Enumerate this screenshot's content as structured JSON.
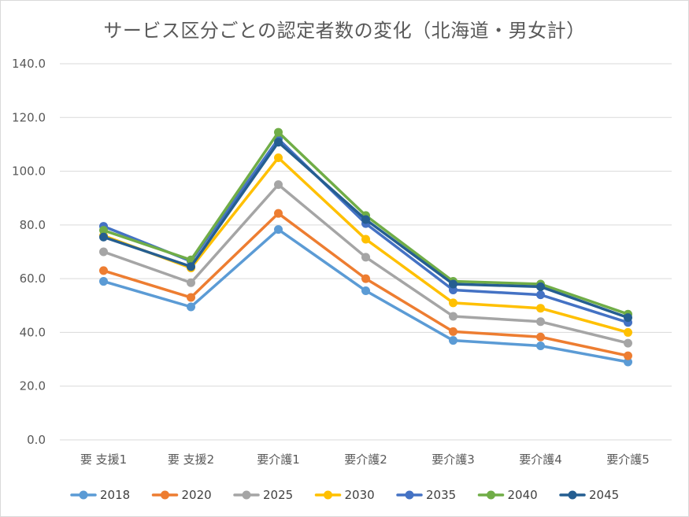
{
  "chart_data": {
    "type": "line",
    "title": "サービス区分ごとの認定者数の変化（北海道・男女計）",
    "xlabel": "",
    "ylabel": "",
    "categories": [
      "要 支援1",
      "要 支援2",
      "要介護1",
      "要介護2",
      "要介護3",
      "要介護4",
      "要介護5"
    ],
    "ylim": [
      0,
      140
    ],
    "yticks": [
      "0.0",
      "20.0",
      "40.0",
      "60.0",
      "80.0",
      "100.0",
      "120.0",
      "140.0"
    ],
    "grid": true,
    "legend_position": "bottom",
    "series": [
      {
        "name": "2018",
        "color": "#5b9bd5",
        "values": [
          59.0,
          49.5,
          78.3,
          55.5,
          37.0,
          35.0,
          29.0
        ]
      },
      {
        "name": "2020",
        "color": "#ed7d31",
        "values": [
          63.0,
          53.0,
          84.3,
          60.0,
          40.3,
          38.3,
          31.3
        ]
      },
      {
        "name": "2025",
        "color": "#a5a5a5",
        "values": [
          70.0,
          58.5,
          95.0,
          68.0,
          46.0,
          44.0,
          36.0
        ]
      },
      {
        "name": "2030",
        "color": "#ffc000",
        "values": [
          76.0,
          64.0,
          105.0,
          74.7,
          51.0,
          49.0,
          40.0
        ]
      },
      {
        "name": "2035",
        "color": "#4472c4",
        "values": [
          79.5,
          66.5,
          112.0,
          80.5,
          55.8,
          54.0,
          43.7
        ]
      },
      {
        "name": "2040",
        "color": "#70ad47",
        "values": [
          78.0,
          67.0,
          114.5,
          83.5,
          59.0,
          58.0,
          46.8
        ]
      },
      {
        "name": "2045",
        "color": "#255e91",
        "values": [
          75.5,
          64.5,
          110.8,
          82.0,
          58.0,
          57.0,
          45.5
        ]
      }
    ]
  }
}
